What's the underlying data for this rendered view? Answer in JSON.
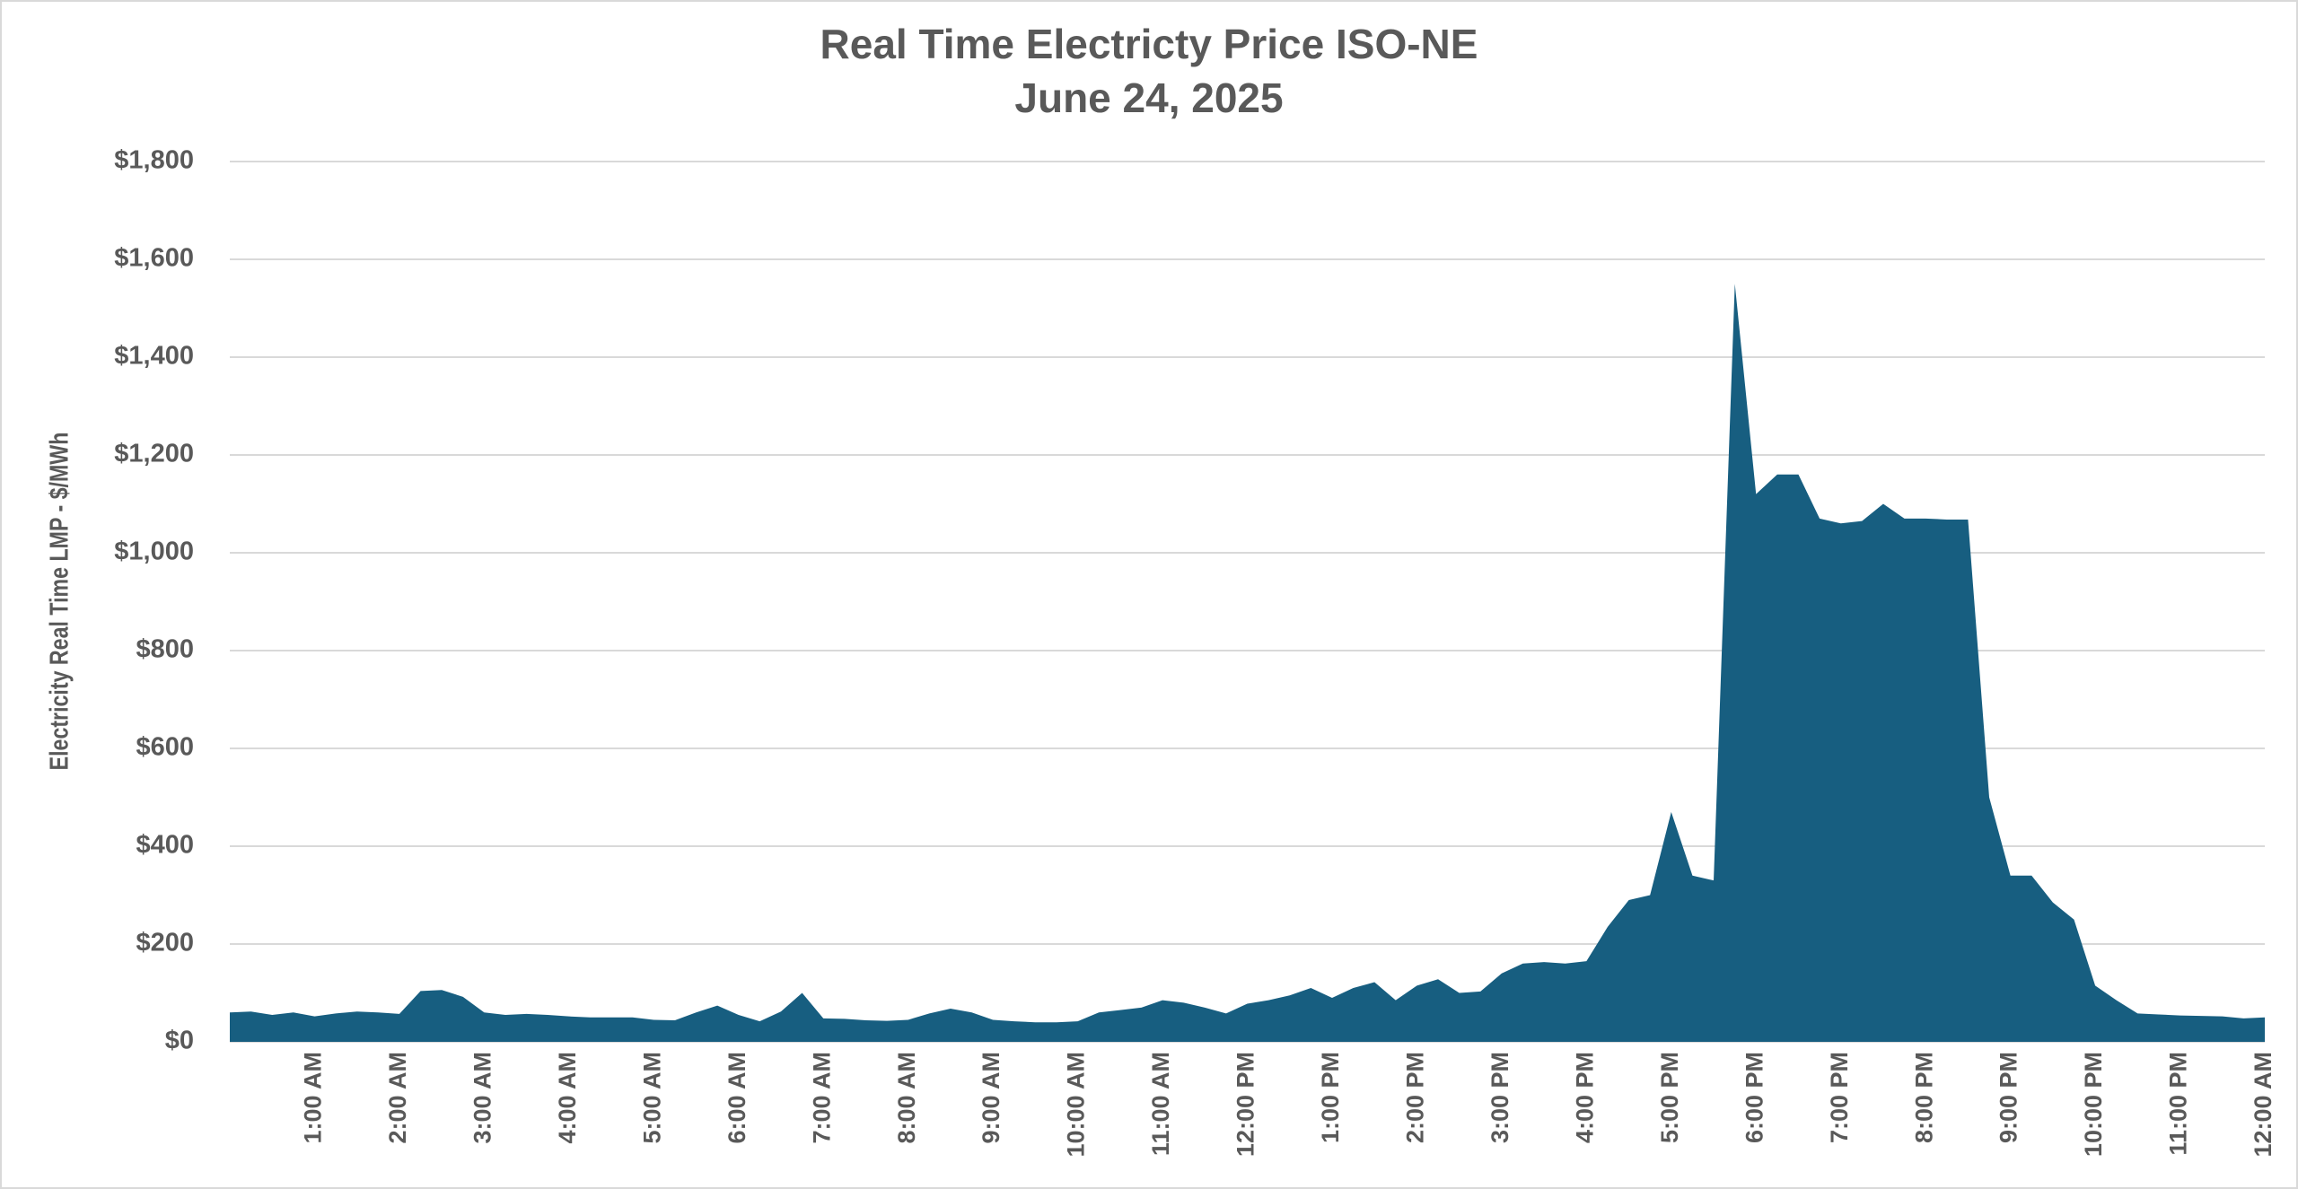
{
  "chart_data": {
    "type": "area",
    "title": "Real Time Electricty Price ISO-NE",
    "subtitle": "June 24, 2025",
    "y_label": "Electricity Real Time  LMP - $/MWh",
    "color": "#175e80",
    "grid": true,
    "ylim": [
      0,
      1800
    ],
    "yticks": [
      {
        "value": 0,
        "label": "$0"
      },
      {
        "value": 200,
        "label": "$200"
      },
      {
        "value": 400,
        "label": "$400"
      },
      {
        "value": 600,
        "label": "$600"
      },
      {
        "value": 800,
        "label": "$800"
      },
      {
        "value": 1000,
        "label": "$1,000"
      },
      {
        "value": 1200,
        "label": "$1,200"
      },
      {
        "value": 1400,
        "label": "$1,400"
      },
      {
        "value": 1600,
        "label": "$1,600"
      },
      {
        "value": 1800,
        "label": "$1,800"
      }
    ],
    "categories": [
      null,
      null,
      null,
      null,
      "1:00 AM",
      null,
      null,
      null,
      "2:00 AM",
      null,
      null,
      null,
      "3:00 AM",
      null,
      null,
      null,
      "4:00 AM",
      null,
      null,
      null,
      "5:00 AM",
      null,
      null,
      null,
      "6:00 AM",
      null,
      null,
      null,
      "7:00 AM",
      null,
      null,
      null,
      "8:00 AM",
      null,
      null,
      null,
      "9:00 AM",
      null,
      null,
      null,
      "10:00 AM",
      null,
      null,
      null,
      "11:00 AM",
      null,
      null,
      null,
      "12:00 PM",
      null,
      null,
      null,
      "1:00 PM",
      null,
      null,
      null,
      "2:00 PM",
      null,
      null,
      null,
      "3:00 PM",
      null,
      null,
      null,
      "4:00 PM",
      null,
      null,
      null,
      "5:00 PM",
      null,
      null,
      null,
      "6:00 PM",
      null,
      null,
      null,
      "7:00 PM",
      null,
      null,
      null,
      "8:00 PM",
      null,
      null,
      null,
      "9:00 PM",
      null,
      null,
      null,
      "10:00 PM",
      null,
      null,
      null,
      "11:00 PM",
      null,
      null,
      null,
      "12:00 AM"
    ],
    "values": [
      60,
      62,
      55,
      60,
      52,
      58,
      62,
      60,
      57,
      104,
      106,
      92,
      60,
      55,
      57,
      55,
      52,
      50,
      50,
      50,
      45,
      44,
      60,
      74,
      55,
      42,
      62,
      100,
      48,
      47,
      44,
      43,
      45,
      58,
      68,
      60,
      45,
      42,
      40,
      40,
      42,
      60,
      65,
      70,
      85,
      80,
      70,
      58,
      78,
      85,
      95,
      110,
      90,
      110,
      122,
      85,
      115,
      128,
      100,
      103,
      140,
      160,
      163,
      160,
      165,
      235,
      290,
      300,
      470,
      340,
      330,
      1550,
      1120,
      1160,
      1160,
      1070,
      1060,
      1065,
      1100,
      1070,
      1070,
      1068,
      1068,
      500,
      340,
      340,
      285,
      250,
      115,
      85,
      58,
      56,
      54,
      53,
      52,
      48,
      50
    ]
  }
}
